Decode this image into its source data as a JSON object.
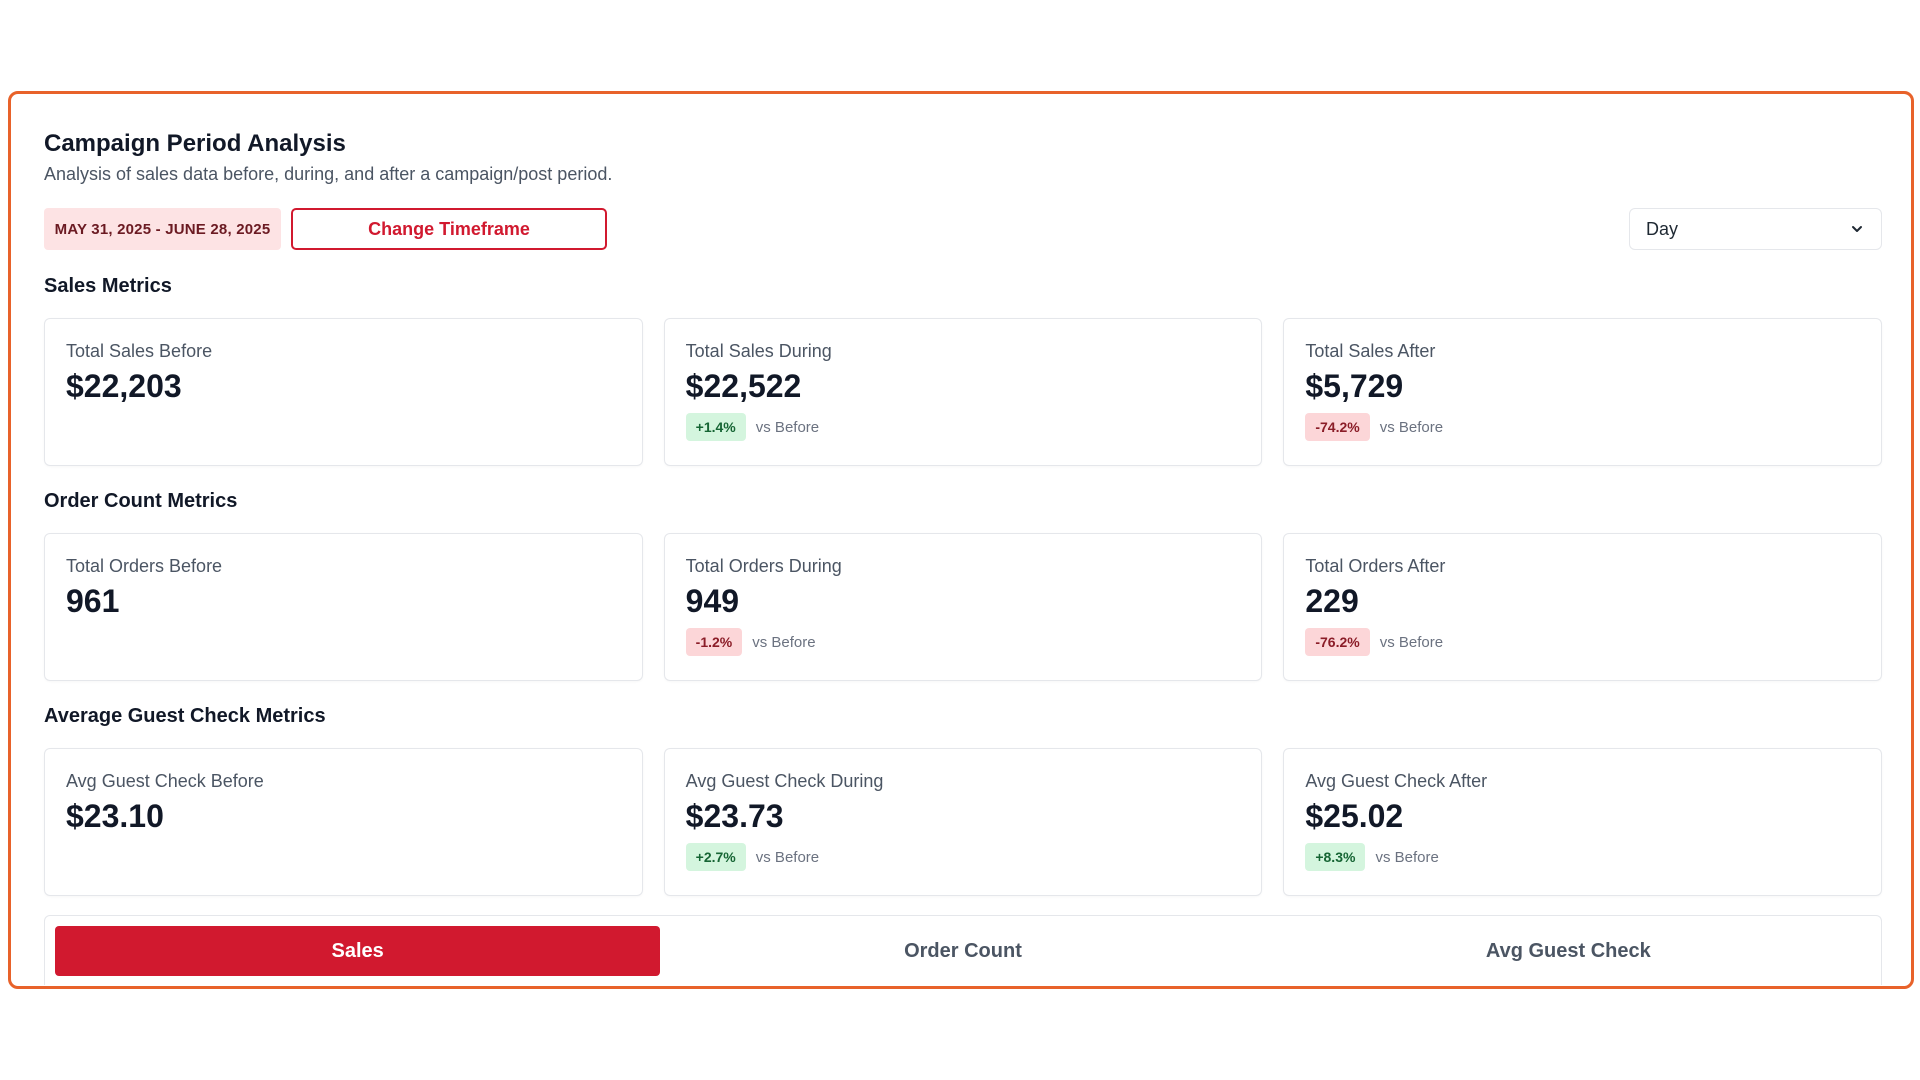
{
  "header": {
    "title": "Campaign Period Analysis",
    "subtitle": "Analysis of sales data before, during, and after a campaign/post period.",
    "date_range": "MAY 31, 2025 - JUNE 28, 2025",
    "change_button": "Change Timeframe",
    "granularity": {
      "selected": "Day"
    }
  },
  "sections": {
    "sales": {
      "title": "Sales Metrics",
      "before": {
        "label": "Total Sales Before",
        "value": "$22,203"
      },
      "during": {
        "label": "Total Sales During",
        "value": "$22,522",
        "delta": "+1.4%",
        "delta_dir": "up",
        "compare": "vs Before"
      },
      "after": {
        "label": "Total Sales After",
        "value": "$5,729",
        "delta": "-74.2%",
        "delta_dir": "down",
        "compare": "vs Before"
      }
    },
    "orders": {
      "title": "Order Count Metrics",
      "before": {
        "label": "Total Orders Before",
        "value": "961"
      },
      "during": {
        "label": "Total Orders During",
        "value": "949",
        "delta": "-1.2%",
        "delta_dir": "down",
        "compare": "vs Before"
      },
      "after": {
        "label": "Total Orders After",
        "value": "229",
        "delta": "-76.2%",
        "delta_dir": "down",
        "compare": "vs Before"
      }
    },
    "avg_check": {
      "title": "Average Guest Check Metrics",
      "before": {
        "label": "Avg Guest Check Before",
        "value": "$23.10"
      },
      "during": {
        "label": "Avg Guest Check During",
        "value": "$23.73",
        "delta": "+2.7%",
        "delta_dir": "up",
        "compare": "vs Before"
      },
      "after": {
        "label": "Avg Guest Check After",
        "value": "$25.02",
        "delta": "+8.3%",
        "delta_dir": "up",
        "compare": "vs Before"
      }
    }
  },
  "tabs": [
    {
      "label": "Sales",
      "active": true
    },
    {
      "label": "Order Count",
      "active": false
    },
    {
      "label": "Avg Guest Check",
      "active": false
    }
  ],
  "colors": {
    "frame": "#e8622a",
    "accent": "#d1192f",
    "positive_bg": "#d4f5de",
    "negative_bg": "#fcd6d8"
  },
  "icons": {
    "select_chevron": "chevron-down-icon"
  }
}
